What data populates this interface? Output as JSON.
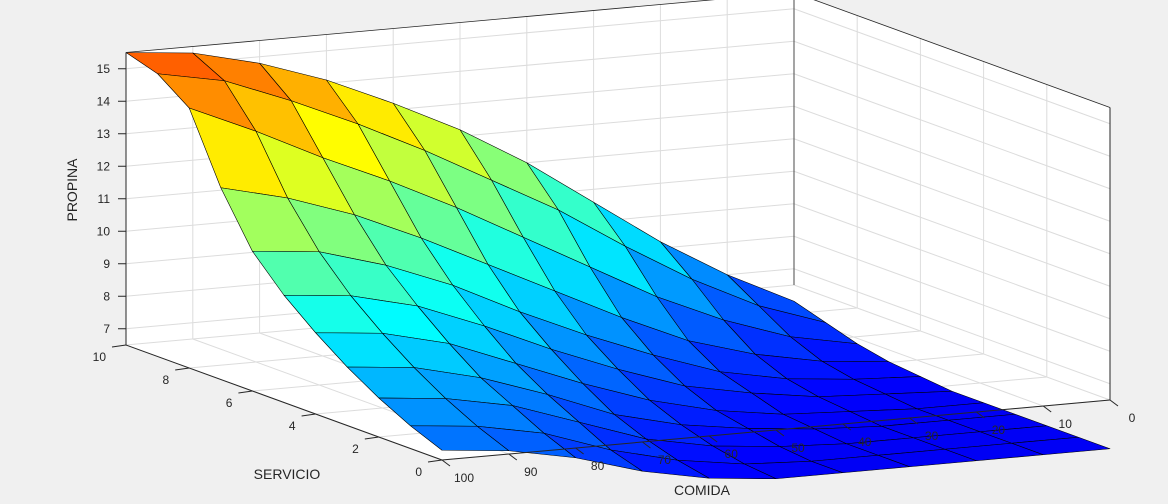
{
  "chart_data": {
    "type": "surface",
    "xlabel": "COMIDA",
    "ylabel": "SERVICIO",
    "zlabel": "PROPINA",
    "xlim": [
      0,
      100
    ],
    "ylim": [
      0,
      10
    ],
    "zlim": [
      6.5,
      15.5
    ],
    "x_ticks": [
      "100",
      "90",
      "80",
      "70",
      "60",
      "50",
      "40",
      "30",
      "20",
      "10",
      "0"
    ],
    "y_ticks": [
      "0",
      "2",
      "4",
      "6",
      "8",
      "10"
    ],
    "z_ticks": [
      "7",
      "8",
      "9",
      "10",
      "11",
      "12",
      "13",
      "14",
      "15"
    ],
    "grid": true,
    "colormap": "jet",
    "x_grid": [
      0,
      10,
      20,
      30,
      40,
      50,
      60,
      70,
      80,
      90,
      100
    ],
    "y_grid": [
      0,
      1,
      2,
      3,
      4,
      5,
      6,
      7,
      8,
      9,
      10
    ],
    "surface_note_rows_by_servicio": true,
    "z": [
      [
        5.0,
        5.0,
        5.0,
        5.0,
        5.0,
        5.0,
        5.2,
        5.6,
        6.2,
        6.6,
        6.8
      ],
      [
        5.0,
        5.0,
        5.0,
        5.0,
        5.0,
        5.1,
        5.4,
        5.9,
        6.6,
        7.0,
        7.2
      ],
      [
        5.0,
        5.0,
        5.0,
        5.0,
        5.1,
        5.3,
        5.7,
        6.4,
        7.1,
        7.5,
        7.7
      ],
      [
        5.0,
        5.0,
        5.0,
        5.1,
        5.3,
        5.6,
        6.1,
        6.9,
        7.6,
        8.1,
        8.3
      ],
      [
        5.0,
        5.0,
        5.1,
        5.2,
        5.5,
        6.0,
        6.7,
        7.5,
        8.3,
        8.8,
        9.0
      ],
      [
        5.0,
        5.1,
        5.2,
        5.5,
        5.9,
        6.6,
        7.4,
        8.3,
        9.1,
        9.6,
        9.8
      ],
      [
        5.1,
        5.2,
        5.4,
        5.8,
        6.5,
        7.3,
        8.2,
        9.2,
        10.0,
        10.6,
        10.8
      ],
      [
        5.2,
        5.4,
        5.8,
        6.4,
        7.3,
        8.3,
        9.3,
        10.3,
        11.2,
        11.9,
        12.4
      ],
      [
        5.4,
        5.8,
        6.5,
        7.4,
        8.5,
        9.6,
        10.7,
        11.7,
        12.6,
        13.6,
        14.5
      ],
      [
        5.7,
        6.4,
        7.4,
        8.6,
        9.9,
        11.0,
        12.1,
        13.1,
        14.0,
        14.8,
        15.2
      ],
      [
        6.0,
        7.0,
        8.2,
        9.6,
        11.0,
        12.2,
        13.2,
        14.1,
        14.8,
        15.3,
        15.5
      ]
    ]
  }
}
